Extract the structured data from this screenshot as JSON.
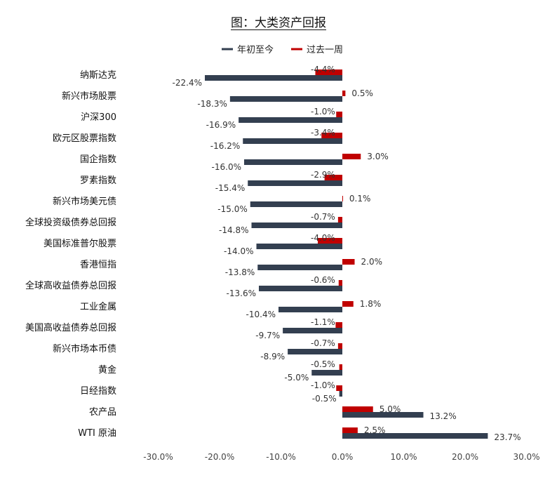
{
  "chart_data": {
    "type": "bar",
    "orientation": "horizontal",
    "title": "图：大类资产回报",
    "categories": [
      "纳斯达克",
      "新兴市场股票",
      "沪深300",
      "欧元区股票指数",
      "国企指数",
      "罗素指数",
      "新兴市场美元债",
      "全球投资级债券总回报",
      "美国标准普尔股票",
      "香港恒指",
      "全球高收益债券总回报",
      "工业金属",
      "美国高收益债券总回报",
      "新兴市场本币债",
      "黄金",
      "日经指数",
      "农产品",
      "WTI 原油"
    ],
    "series": [
      {
        "name": "年初至今",
        "color": "#333f50",
        "values": [
          -22.4,
          -18.3,
          -16.9,
          -16.2,
          -16.0,
          -15.4,
          -15.0,
          -14.8,
          -14.0,
          -13.8,
          -13.6,
          -10.4,
          -9.7,
          -8.9,
          -5.0,
          -0.5,
          13.2,
          23.7
        ],
        "labels": [
          "-22.4%",
          "-18.3%",
          "-16.9%",
          "-16.2%",
          "-16.0%",
          "-15.4%",
          "-15.0%",
          "-14.8%",
          "-14.0%",
          "-13.8%",
          "-13.6%",
          "-10.4%",
          "-9.7%",
          "-8.9%",
          "-5.0%",
          "-0.5%",
          "13.2%",
          "23.7%"
        ]
      },
      {
        "name": "过去一周",
        "color": "#c00000",
        "values": [
          -4.4,
          0.5,
          -1.0,
          -3.4,
          3.0,
          -2.9,
          0.1,
          -0.7,
          -4.0,
          2.0,
          -0.6,
          1.8,
          -1.1,
          -0.7,
          -0.5,
          -1.0,
          5.0,
          2.5
        ],
        "labels": [
          "-4.4%",
          "0.5%",
          "-1.0%",
          "-3.4%",
          "3.0%",
          "-2.9%",
          "0.1%",
          "-0.7%",
          "-4.0%",
          "2.0%",
          "-0.6%",
          "1.8%",
          "-1.1%",
          "-0.7%",
          "-0.5%",
          "-1.0%",
          "5.0%",
          "2.5%"
        ]
      }
    ],
    "xlim": [
      -30,
      30
    ],
    "xticks": [
      -30,
      -20,
      -10,
      0,
      10,
      20,
      30
    ],
    "xtick_labels": [
      "-30.0%",
      "-20.0%",
      "-10.0%",
      "0.0%",
      "10.0%",
      "20.0%",
      "30.0%"
    ],
    "legend_position": "top",
    "grid": false
  }
}
